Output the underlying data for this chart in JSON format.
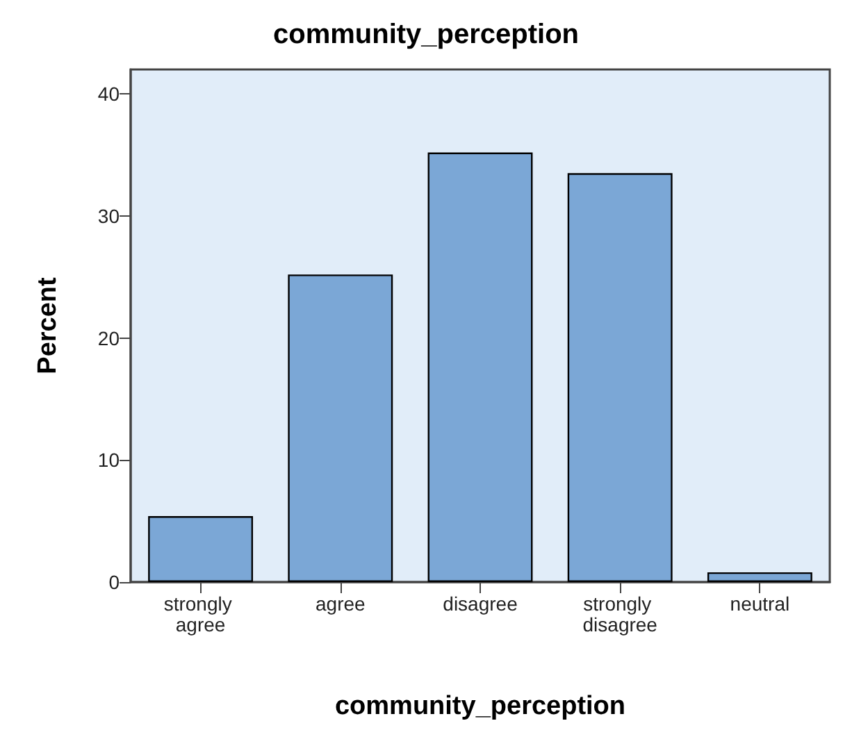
{
  "chart_data": {
    "type": "bar",
    "title": "community_perception",
    "xlabel": "community_perception",
    "ylabel": "Percent",
    "categories": [
      "strongly agree",
      "agree",
      "disagree",
      "strongly disagree",
      "neutral"
    ],
    "values": [
      5.4,
      25.2,
      35.2,
      33.5,
      0.8
    ],
    "color": "#7ba7d6",
    "ylim": [
      0,
      42
    ],
    "yticks": [
      0,
      10,
      20,
      30,
      40
    ],
    "grid": false
  }
}
